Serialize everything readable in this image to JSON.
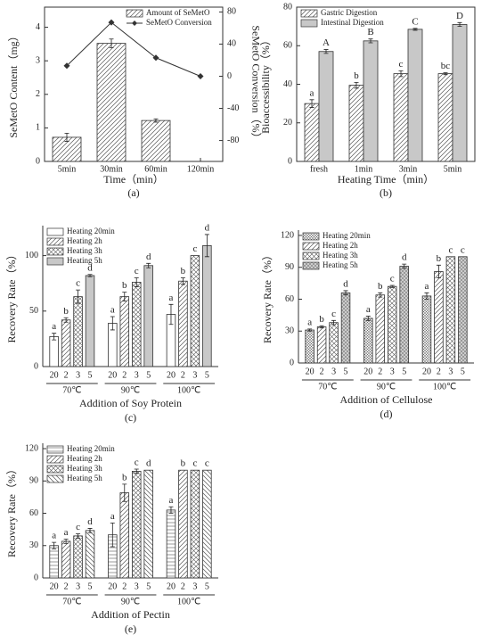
{
  "chart_data": [
    {
      "type": "bar",
      "panel": "(a)",
      "xlabel": "Time（min）",
      "ylabel": "SeMetO Content（mg）",
      "y2label": "SeMetO Conversion（%）",
      "categories": [
        "5min",
        "30min",
        "60min",
        "120min"
      ],
      "series": [
        {
          "name": "Amount of SeMetO",
          "type": "bar",
          "pattern": "hatch",
          "values": [
            0.72,
            3.52,
            1.22,
            null
          ],
          "errors": [
            0.12,
            0.13,
            0.05,
            null
          ]
        },
        {
          "name": "SeMetO Conversion",
          "type": "line",
          "axis": "y2",
          "color": "#333333",
          "values": [
            13,
            67,
            23,
            0
          ]
        }
      ],
      "ylim": [
        0,
        4.6
      ],
      "yticks": [
        0,
        1,
        2,
        3,
        4
      ],
      "y2lim": [
        -106,
        86
      ],
      "y2ticks": [
        -80,
        -40,
        0,
        40,
        80
      ],
      "legend": "upper right"
    },
    {
      "type": "bar",
      "panel": "(b)",
      "xlabel": "Heating Time（min）",
      "ylabel": "Bioaccessibility（%）",
      "categories": [
        "fresh",
        "1min",
        "3min",
        "5min"
      ],
      "series": [
        {
          "name": "Gastric Digestion",
          "type": "bar",
          "pattern": "hatch",
          "values": [
            30,
            39.5,
            45.5,
            45.5
          ],
          "errors": [
            2,
            1.5,
            1.5,
            0.5
          ],
          "letters": [
            "a",
            "b",
            "c",
            "bc"
          ]
        },
        {
          "name": "Intestinal Digestion",
          "type": "bar",
          "pattern": "gray",
          "values": [
            57,
            62.5,
            68.5,
            71
          ],
          "errors": [
            1,
            1,
            0.5,
            1
          ],
          "letters": [
            "A",
            "B",
            "C",
            "D"
          ]
        }
      ],
      "ylim": [
        0,
        80
      ],
      "yticks": [
        0,
        20,
        40,
        60,
        80
      ],
      "legend": "upper left"
    },
    {
      "type": "bar",
      "panel": "(c)",
      "xlabel": "Addition of Soy Protein",
      "ylabel": "Recovery Rate（%）",
      "categories": [
        "70℃",
        "90℃",
        "100℃"
      ],
      "bar_labels": [
        "20",
        "2",
        "3",
        "5"
      ],
      "series": [
        {
          "name": "Heating 20min",
          "type": "bar",
          "pattern": "white",
          "values": [
            27,
            39,
            47
          ],
          "errors": [
            3,
            6,
            9
          ],
          "letters": [
            "a",
            "a",
            "a"
          ]
        },
        {
          "name": "Heating 2h",
          "type": "bar",
          "pattern": "hatch",
          "values": [
            42,
            63,
            77
          ],
          "errors": [
            2,
            4,
            3
          ],
          "letters": [
            "b",
            "b",
            "b"
          ]
        },
        {
          "name": "Heating 3h",
          "type": "bar",
          "pattern": "cross",
          "values": [
            63,
            76,
            100
          ],
          "errors": [
            6,
            4,
            null
          ],
          "letters": [
            "c",
            "c",
            "c"
          ]
        },
        {
          "name": "Heating 5h",
          "type": "bar",
          "pattern": "gray",
          "values": [
            82,
            91,
            109
          ],
          "errors": [
            1,
            2,
            10
          ],
          "letters": [
            "d",
            "d",
            "d"
          ]
        }
      ],
      "ylim": [
        0,
        127
      ],
      "yticks": [
        0,
        50,
        100
      ],
      "legend": "upper left"
    },
    {
      "type": "bar",
      "panel": "(d)",
      "xlabel": "Addition of Cellulose",
      "ylabel": "Recovery Rate（%）",
      "categories": [
        "70℃",
        "90℃",
        "100℃"
      ],
      "bar_labels": [
        "20",
        "2",
        "3",
        "5"
      ],
      "series": [
        {
          "name": "Heating 20min",
          "type": "bar",
          "pattern": "dense",
          "values": [
            31,
            42,
            63
          ],
          "errors": [
            1,
            2,
            3
          ],
          "letters": [
            "a",
            "a",
            "a"
          ]
        },
        {
          "name": "Heating 2h",
          "type": "bar",
          "pattern": "hatch",
          "values": [
            34,
            64,
            86
          ],
          "errors": [
            1,
            2,
            6
          ],
          "letters": [
            "b",
            "b",
            "b"
          ]
        },
        {
          "name": "Heating 3h",
          "type": "bar",
          "pattern": "cross",
          "values": [
            38,
            72,
            100
          ],
          "errors": [
            2,
            1,
            null
          ],
          "letters": [
            "c",
            "c",
            "c"
          ]
        },
        {
          "name": "Heating 5h",
          "type": "bar",
          "pattern": "grid",
          "values": [
            66,
            91,
            100
          ],
          "errors": [
            2,
            2,
            null
          ],
          "letters": [
            "d",
            "d",
            "c"
          ]
        }
      ],
      "ylim": [
        0,
        125
      ],
      "yticks": [
        0,
        30,
        60,
        90,
        120
      ],
      "legend": "upper left"
    },
    {
      "type": "bar",
      "panel": "(e)",
      "xlabel": "Addition of Pectin",
      "ylabel": "Recovery Rate（%）",
      "categories": [
        "70℃",
        "90℃",
        "100℃"
      ],
      "bar_labels": [
        "20",
        "2",
        "3",
        "5"
      ],
      "series": [
        {
          "name": "Heating 20min",
          "type": "bar",
          "pattern": "hline",
          "values": [
            30,
            40,
            63
          ],
          "errors": [
            3,
            11,
            3
          ],
          "letters": [
            "a",
            "a",
            "a"
          ]
        },
        {
          "name": "Heating 2h",
          "type": "bar",
          "pattern": "hatch",
          "values": [
            34,
            79,
            100
          ],
          "errors": [
            2,
            8,
            null
          ],
          "letters": [
            "a",
            "b",
            "b"
          ]
        },
        {
          "name": "Heating 3h",
          "type": "bar",
          "pattern": "cross",
          "values": [
            39,
            99,
            100
          ],
          "errors": [
            2,
            2,
            null
          ],
          "letters": [
            "c",
            "c",
            "c"
          ]
        },
        {
          "name": "Heating 5h",
          "type": "bar",
          "pattern": "back",
          "values": [
            44,
            100,
            100
          ],
          "errors": [
            2,
            null,
            null
          ],
          "letters": [
            "d",
            "d",
            "c"
          ]
        }
      ],
      "ylim": [
        0,
        125
      ],
      "yticks": [
        0,
        30,
        60,
        90,
        120
      ],
      "legend": "upper left"
    }
  ]
}
